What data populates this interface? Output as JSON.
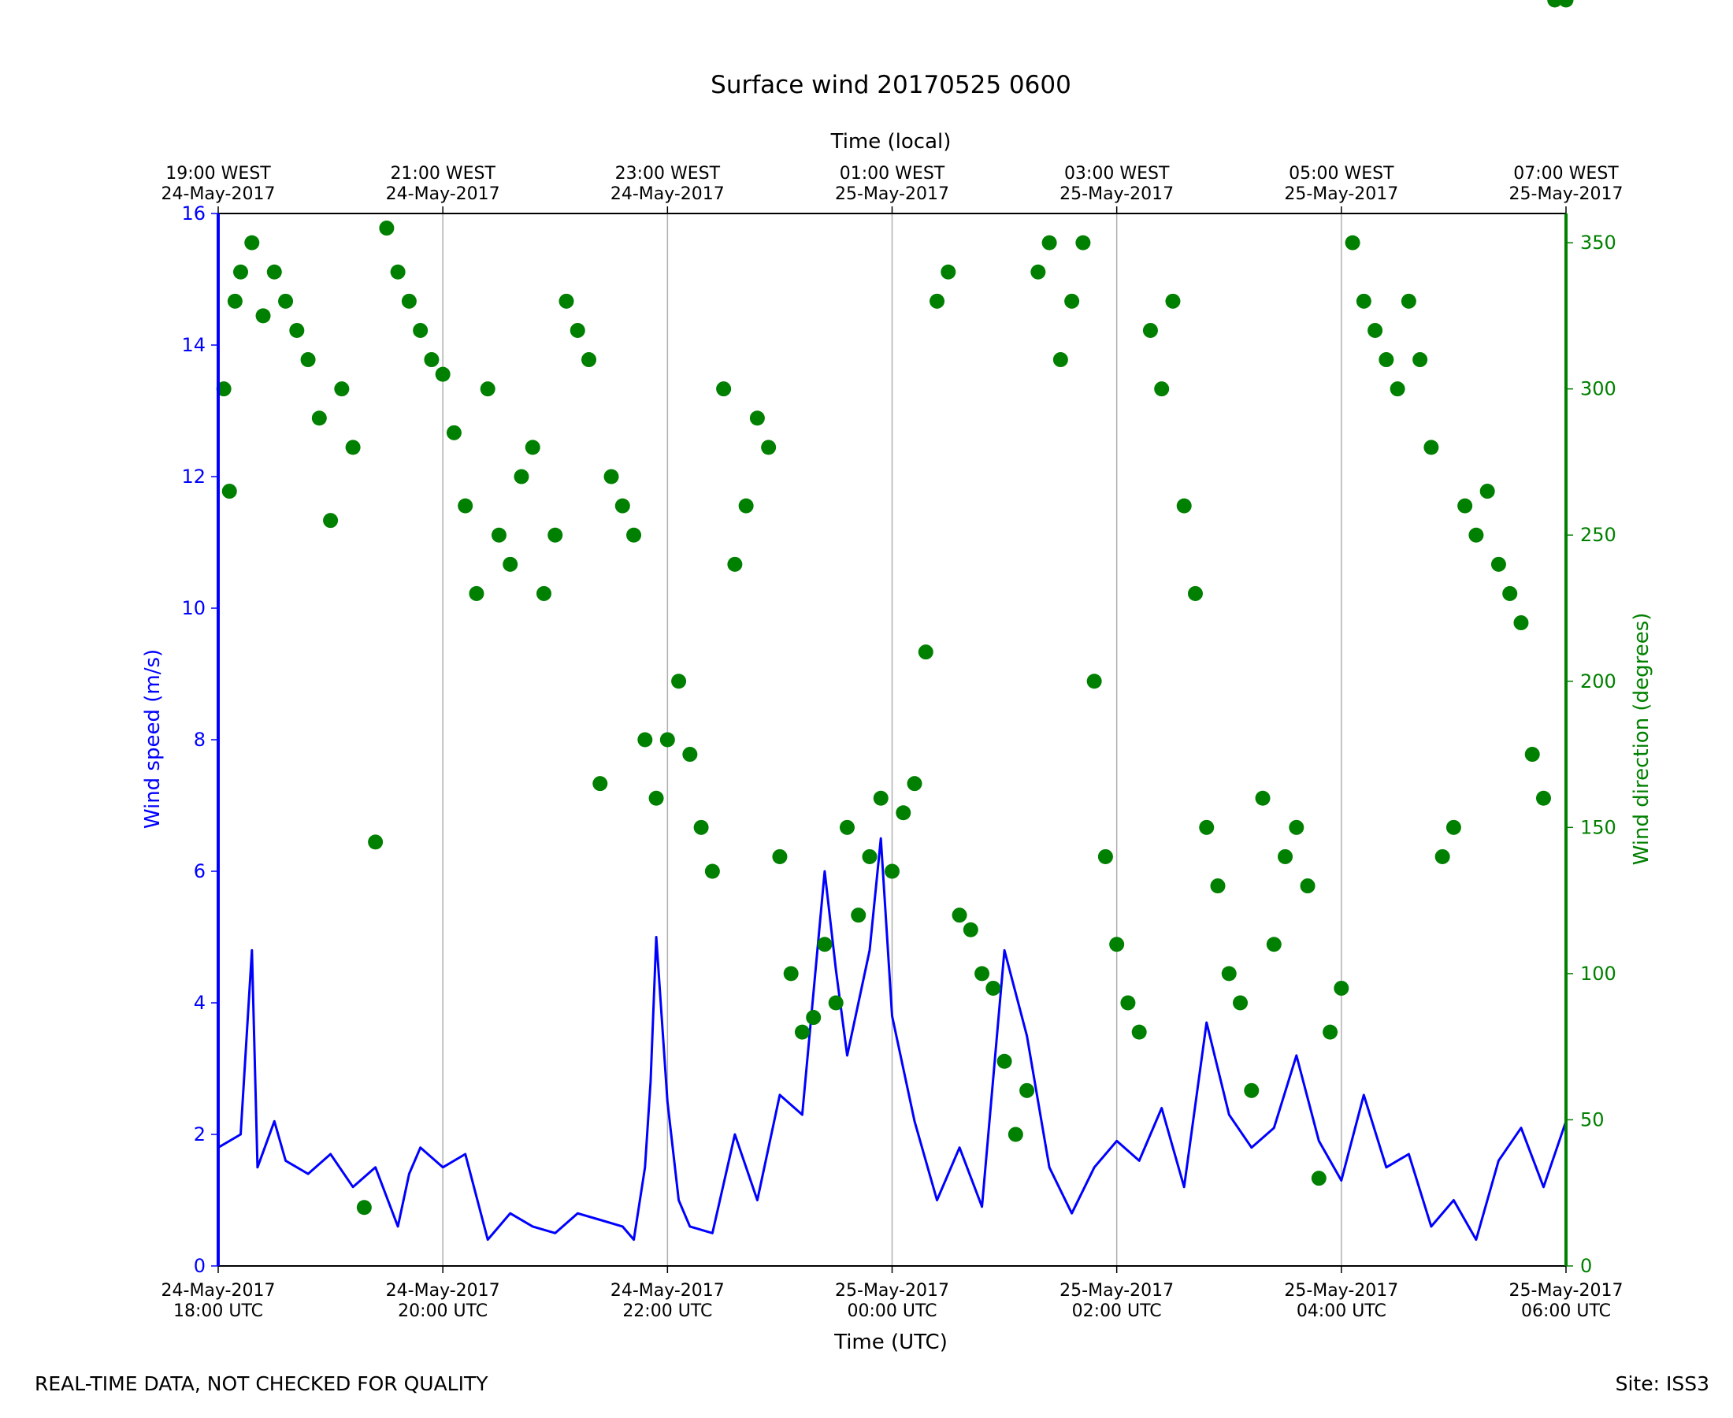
{
  "chart_data": {
    "type": "line+scatter",
    "title": "Surface wind 20170525 0600",
    "xlabel": "Time (UTC)",
    "top_xlabel": "Time (local)",
    "ylabel_left": "Wind speed (m/s)",
    "ylabel_right": "Wind direction (degrees)",
    "xlim": [
      "2017-05-24T18:00Z",
      "2017-05-25T06:00Z"
    ],
    "ylim_left": [
      0,
      16
    ],
    "ylim_right": [
      0,
      360
    ],
    "grid": "vertical lines at bottom ticks",
    "x_ticks": [
      {
        "line1": "24-May-2017",
        "line2": "18:00 UTC"
      },
      {
        "line1": "24-May-2017",
        "line2": "20:00 UTC"
      },
      {
        "line1": "24-May-2017",
        "line2": "22:00 UTC"
      },
      {
        "line1": "25-May-2017",
        "line2": "00:00 UTC"
      },
      {
        "line1": "25-May-2017",
        "line2": "02:00 UTC"
      },
      {
        "line1": "25-May-2017",
        "line2": "04:00 UTC"
      },
      {
        "line1": "25-May-2017",
        "line2": "06:00 UTC"
      }
    ],
    "top_x_ticks": [
      {
        "line1": "19:00 WEST",
        "line2": "24-May-2017"
      },
      {
        "line1": "21:00 WEST",
        "line2": "24-May-2017"
      },
      {
        "line1": "23:00 WEST",
        "line2": "24-May-2017"
      },
      {
        "line1": "01:00 WEST",
        "line2": "25-May-2017"
      },
      {
        "line1": "03:00 WEST",
        "line2": "25-May-2017"
      },
      {
        "line1": "05:00 WEST",
        "line2": "25-May-2017"
      },
      {
        "line1": "07:00 WEST",
        "line2": "25-May-2017"
      }
    ],
    "y_left_ticks": [
      0,
      2,
      4,
      6,
      8,
      10,
      12,
      14,
      16
    ],
    "y_right_ticks": [
      0,
      50,
      100,
      150,
      200,
      250,
      300,
      350
    ],
    "colors": {
      "speed": "#0000ff",
      "direction": "#008000"
    },
    "series": [
      {
        "label": "Wind speed",
        "axis": "left",
        "style": "line",
        "x_hours_utc": [
          18.0,
          18.2,
          18.3,
          18.35,
          18.5,
          18.6,
          18.8,
          19.0,
          19.2,
          19.4,
          19.6,
          19.7,
          19.8,
          20.0,
          20.2,
          20.4,
          20.6,
          20.8,
          21.0,
          21.2,
          21.4,
          21.6,
          21.7,
          21.8,
          21.85,
          21.9,
          22.0,
          22.1,
          22.2,
          22.4,
          22.6,
          22.8,
          23.0,
          23.2,
          23.4,
          23.5,
          23.6,
          23.8,
          23.9,
          24.0,
          24.2,
          24.4,
          24.6,
          24.8,
          25.0,
          25.2,
          25.4,
          25.6,
          25.8,
          26.0,
          26.2,
          26.4,
          26.6,
          26.8,
          27.0,
          27.2,
          27.4,
          27.6,
          27.8,
          28.0,
          28.2,
          28.4,
          28.6,
          28.8,
          29.0,
          29.2,
          29.4,
          29.6,
          29.8,
          30.0
        ],
        "y": [
          1.8,
          2.0,
          4.8,
          1.5,
          2.2,
          1.6,
          1.4,
          1.7,
          1.2,
          1.5,
          0.6,
          1.4,
          1.8,
          1.5,
          1.7,
          0.4,
          0.8,
          0.6,
          0.5,
          0.8,
          0.7,
          0.6,
          0.4,
          1.5,
          2.8,
          5.0,
          2.5,
          1.0,
          0.6,
          0.5,
          2.0,
          1.0,
          2.6,
          2.3,
          6.0,
          4.5,
          3.2,
          4.8,
          6.5,
          3.8,
          2.2,
          1.0,
          1.8,
          0.9,
          4.8,
          3.5,
          1.5,
          0.8,
          1.5,
          1.9,
          1.6,
          2.4,
          1.2,
          3.7,
          2.3,
          1.8,
          2.1,
          3.2,
          1.9,
          1.3,
          2.6,
          1.5,
          1.7,
          0.6,
          1.0,
          0.4,
          1.6,
          2.1,
          1.2,
          2.2
        ]
      },
      {
        "label": "Wind direction",
        "axis": "right",
        "style": "scatter",
        "x_hours_utc": [
          18.05,
          18.1,
          18.15,
          18.2,
          18.3,
          18.4,
          18.5,
          18.6,
          18.7,
          18.8,
          18.9,
          19.0,
          19.1,
          19.2,
          19.3,
          19.4,
          19.5,
          19.6,
          19.7,
          19.8,
          19.9,
          20.0,
          20.1,
          20.2,
          20.3,
          20.4,
          20.5,
          20.6,
          20.7,
          20.8,
          20.9,
          21.0,
          21.1,
          21.2,
          21.3,
          21.4,
          21.5,
          21.6,
          21.7,
          21.8,
          21.9,
          22.0,
          22.1,
          22.2,
          22.3,
          22.4,
          22.5,
          22.6,
          22.7,
          22.8,
          22.9,
          23.0,
          23.1,
          23.2,
          23.3,
          23.4,
          23.5,
          23.6,
          23.7,
          23.8,
          23.9,
          24.0,
          24.1,
          24.2,
          24.3,
          24.4,
          24.5,
          24.6,
          24.7,
          24.8,
          24.9,
          25.0,
          25.1,
          25.2,
          25.3,
          25.4,
          25.5,
          25.6,
          25.7,
          25.8,
          25.9,
          26.0,
          26.1,
          26.2,
          26.3,
          26.4,
          26.5,
          26.6,
          26.7,
          26.8,
          26.9,
          27.0,
          27.1,
          27.2,
          27.3,
          27.4,
          27.5,
          27.6,
          27.7,
          27.8,
          27.9,
          28.0,
          28.1,
          28.2,
          28.3,
          28.4,
          28.5,
          28.6,
          28.7,
          28.8,
          28.9,
          29.0,
          29.1,
          29.2,
          29.3,
          29.4,
          29.5,
          29.6,
          29.7,
          29.8,
          29.9,
          30.0
        ],
        "y": [
          300,
          265,
          330,
          340,
          350,
          325,
          340,
          330,
          320,
          310,
          290,
          255,
          300,
          280,
          20,
          145,
          355,
          340,
          330,
          320,
          310,
          305,
          285,
          260,
          230,
          300,
          250,
          240,
          270,
          280,
          230,
          250,
          330,
          320,
          310,
          165,
          270,
          260,
          250,
          180,
          160,
          180,
          200,
          175,
          150,
          135,
          300,
          240,
          260,
          290,
          280,
          140,
          100,
          80,
          85,
          110,
          90,
          150,
          120,
          140,
          160,
          135,
          155,
          165,
          210,
          330,
          340,
          120,
          115,
          100,
          95,
          70,
          45,
          60,
          340,
          350,
          310,
          330,
          350,
          200,
          140,
          110,
          90,
          80,
          320,
          300,
          330,
          260,
          230,
          150,
          130,
          100,
          90,
          60,
          160,
          110,
          140,
          150,
          130,
          30,
          80,
          95,
          350,
          330,
          320,
          310,
          300,
          330,
          310,
          280,
          140,
          150,
          260,
          250,
          265,
          240,
          230,
          220,
          175,
          160
        ]
      }
    ]
  },
  "footer": {
    "left": "REAL-TIME DATA, NOT CHECKED FOR QUALITY",
    "right": "Site: ISS3"
  }
}
